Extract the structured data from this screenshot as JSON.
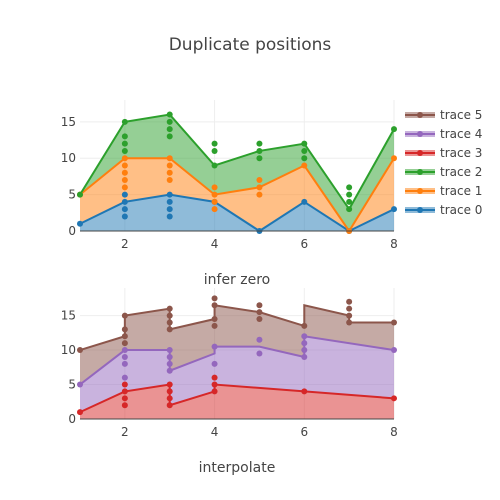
{
  "chart": {
    "title": "Duplicate positions"
  },
  "chart_data": [
    {
      "type": "area",
      "stacking": "infer zero",
      "subtitle": "infer zero",
      "xlim": [
        1,
        8
      ],
      "ylim": [
        0,
        18
      ],
      "x_ticks": [
        2,
        4,
        6,
        8
      ],
      "y_ticks": [
        0,
        5,
        10,
        15
      ],
      "series": [
        {
          "name": "trace 0",
          "color": "#1f77b4",
          "points": [
            [
              1,
              1
            ],
            [
              2,
              2
            ],
            [
              2,
              3
            ],
            [
              2,
              4
            ],
            [
              2,
              5
            ],
            [
              3,
              2
            ],
            [
              3,
              3
            ],
            [
              3,
              4
            ],
            [
              3,
              5
            ],
            [
              4,
              4
            ],
            [
              5,
              0
            ],
            [
              6,
              4
            ],
            [
              7,
              0
            ],
            [
              8,
              3
            ]
          ],
          "line": [
            [
              1,
              1
            ],
            [
              2,
              4
            ],
            [
              3,
              5
            ],
            [
              4,
              4
            ],
            [
              5,
              0
            ],
            [
              6,
              4
            ],
            [
              7,
              0
            ],
            [
              8,
              3
            ]
          ]
        },
        {
          "name": "trace 1",
          "color": "#ff7f0e",
          "points": [
            [
              1,
              5
            ],
            [
              2,
              6
            ],
            [
              2,
              7
            ],
            [
              2,
              8
            ],
            [
              2,
              9
            ],
            [
              2,
              10
            ],
            [
              3,
              7
            ],
            [
              3,
              8
            ],
            [
              3,
              9
            ],
            [
              3,
              10
            ],
            [
              4,
              3
            ],
            [
              4,
              4
            ],
            [
              4,
              5
            ],
            [
              4,
              6
            ],
            [
              5,
              5
            ],
            [
              5,
              6
            ],
            [
              5,
              7
            ],
            [
              6,
              9
            ],
            [
              7,
              0
            ],
            [
              8,
              10
            ]
          ],
          "line": [
            [
              1,
              5
            ],
            [
              2,
              10
            ],
            [
              3,
              10
            ],
            [
              4,
              5
            ],
            [
              5,
              6
            ],
            [
              6,
              9
            ],
            [
              7,
              0
            ],
            [
              8,
              10
            ]
          ]
        },
        {
          "name": "trace 2",
          "color": "#2ca02c",
          "points": [
            [
              1,
              5
            ],
            [
              2,
              11
            ],
            [
              2,
              12
            ],
            [
              2,
              13
            ],
            [
              2,
              15
            ],
            [
              3,
              13
            ],
            [
              3,
              14
            ],
            [
              3,
              15
            ],
            [
              3,
              16
            ],
            [
              4,
              9
            ],
            [
              4,
              11
            ],
            [
              4,
              12
            ],
            [
              5,
              10
            ],
            [
              5,
              11
            ],
            [
              5,
              12
            ],
            [
              6,
              10
            ],
            [
              6,
              11
            ],
            [
              6,
              12
            ],
            [
              7,
              3
            ],
            [
              7,
              4
            ],
            [
              7,
              5
            ],
            [
              7,
              6
            ],
            [
              8,
              14
            ]
          ],
          "line": [
            [
              1,
              5
            ],
            [
              2,
              15
            ],
            [
              3,
              16
            ],
            [
              4,
              9
            ],
            [
              5,
              11
            ],
            [
              6,
              12
            ],
            [
              7,
              3
            ],
            [
              8,
              14
            ]
          ]
        }
      ],
      "legend_order_note": "top-right"
    },
    {
      "type": "area",
      "stacking": "interpolate",
      "subtitle": "interpolate",
      "xlim": [
        1,
        8
      ],
      "ylim": [
        0,
        19
      ],
      "x_ticks": [
        2,
        4,
        6,
        8
      ],
      "y_ticks": [
        0,
        5,
        10,
        15
      ],
      "series": [
        {
          "name": "trace 3",
          "color": "#d62728",
          "points": [
            [
              1,
              1
            ],
            [
              2,
              2
            ],
            [
              2,
              3
            ],
            [
              2,
              4
            ],
            [
              2,
              5
            ],
            [
              3,
              2
            ],
            [
              3,
              3
            ],
            [
              3,
              4
            ],
            [
              3,
              5
            ],
            [
              4,
              4
            ],
            [
              4,
              5
            ],
            [
              4,
              6
            ],
            [
              5,
              4.5
            ],
            [
              6,
              4
            ],
            [
              7,
              3.5
            ],
            [
              8,
              3
            ]
          ],
          "line": [
            [
              1,
              1
            ],
            [
              2,
              4
            ],
            [
              3,
              5
            ],
            [
              3,
              2
            ],
            [
              4,
              4
            ],
            [
              4,
              5
            ],
            [
              6,
              4
            ],
            [
              8,
              3
            ]
          ],
          "markers": [
            [
              1,
              1
            ],
            [
              2,
              2
            ],
            [
              2,
              3
            ],
            [
              2,
              4
            ],
            [
              2,
              5
            ],
            [
              3,
              2
            ],
            [
              3,
              3
            ],
            [
              3,
              4
            ],
            [
              3,
              5
            ],
            [
              4,
              4
            ],
            [
              4,
              5
            ],
            [
              4,
              6
            ],
            [
              6,
              4
            ],
            [
              8,
              3
            ]
          ]
        },
        {
          "name": "trace 4",
          "color": "#9467bd",
          "line": [
            [
              1,
              5
            ],
            [
              2,
              10
            ],
            [
              3,
              10
            ],
            [
              3,
              7
            ],
            [
              4,
              9.5
            ],
            [
              4,
              10.5
            ],
            [
              5,
              10.5
            ],
            [
              6,
              9
            ],
            [
              6,
              12
            ],
            [
              8,
              10
            ]
          ],
          "markers": [
            [
              1,
              5
            ],
            [
              2,
              6
            ],
            [
              2,
              8
            ],
            [
              2,
              9
            ],
            [
              2,
              10
            ],
            [
              3,
              7
            ],
            [
              3,
              8
            ],
            [
              3,
              9
            ],
            [
              3,
              10
            ],
            [
              4,
              8
            ],
            [
              4,
              10.5
            ],
            [
              5,
              9.5
            ],
            [
              5,
              11.5
            ],
            [
              6,
              9
            ],
            [
              6,
              10
            ],
            [
              6,
              11
            ],
            [
              6,
              12
            ],
            [
              8,
              10
            ]
          ]
        },
        {
          "name": "trace 5",
          "color": "#8c564b",
          "line": [
            [
              1,
              10
            ],
            [
              2,
              12
            ],
            [
              2,
              15
            ],
            [
              3,
              16
            ],
            [
              3,
              13
            ],
            [
              4,
              14.5
            ],
            [
              4,
              16.5
            ],
            [
              5,
              15.5
            ],
            [
              6,
              13.5
            ],
            [
              6,
              16.5
            ],
            [
              7,
              15
            ],
            [
              7,
              14
            ],
            [
              8,
              14
            ]
          ],
          "markers": [
            [
              1,
              10
            ],
            [
              2,
              11
            ],
            [
              2,
              12
            ],
            [
              2,
              13
            ],
            [
              2,
              15
            ],
            [
              3,
              13
            ],
            [
              3,
              14
            ],
            [
              3,
              15
            ],
            [
              3,
              16
            ],
            [
              4,
              13.5
            ],
            [
              4,
              14.5
            ],
            [
              4,
              16.5
            ],
            [
              4,
              17.5
            ],
            [
              5,
              14.5
            ],
            [
              5,
              15.5
            ],
            [
              5,
              16.5
            ],
            [
              6,
              13.5
            ],
            [
              7,
              14
            ],
            [
              7,
              15
            ],
            [
              7,
              16
            ],
            [
              7,
              17
            ],
            [
              8,
              14
            ]
          ]
        }
      ]
    }
  ],
  "legend": {
    "items": [
      "trace 5",
      "trace 4",
      "trace 3",
      "trace 2",
      "trace 1",
      "trace 0"
    ],
    "colors": [
      "#8c564b",
      "#9467bd",
      "#d62728",
      "#2ca02c",
      "#ff7f0e",
      "#1f77b4"
    ]
  }
}
